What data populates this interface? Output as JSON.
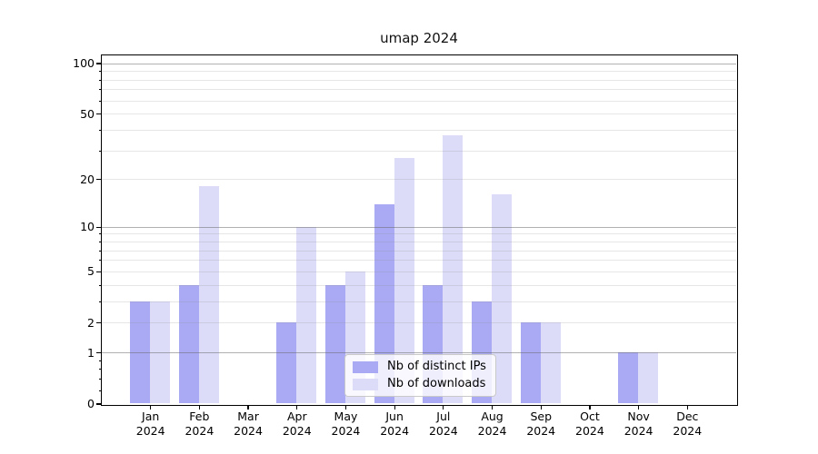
{
  "title": "umap 2024",
  "chart_data": {
    "type": "bar",
    "title": "umap 2024",
    "categories": [
      "Jan 2024",
      "Feb 2024",
      "Mar 2024",
      "Apr 2024",
      "May 2024",
      "Jun 2024",
      "Jul 2024",
      "Aug 2024",
      "Sep 2024",
      "Oct 2024",
      "Nov 2024",
      "Dec 2024"
    ],
    "series": [
      {
        "name": "Nb of distinct IPs",
        "color": "#a9a9f4",
        "values": [
          3,
          4,
          0,
          2,
          4,
          14,
          4,
          3,
          2,
          0,
          1,
          0
        ]
      },
      {
        "name": "Nb of downloads",
        "color": "#dcdcf8",
        "values": [
          3,
          18,
          0,
          10,
          5,
          27,
          37,
          16,
          2,
          0,
          1,
          0
        ]
      }
    ],
    "xlabel": "",
    "ylabel": "",
    "yscale": "log1p",
    "yticks": [
      0,
      1,
      2,
      5,
      10,
      20,
      50,
      100
    ],
    "ylim": [
      0,
      112
    ],
    "grid": "on",
    "grid_major_color": "#b3b3b3",
    "grid_minor_color": "#e7e7e7",
    "legend_position": "lower center"
  }
}
